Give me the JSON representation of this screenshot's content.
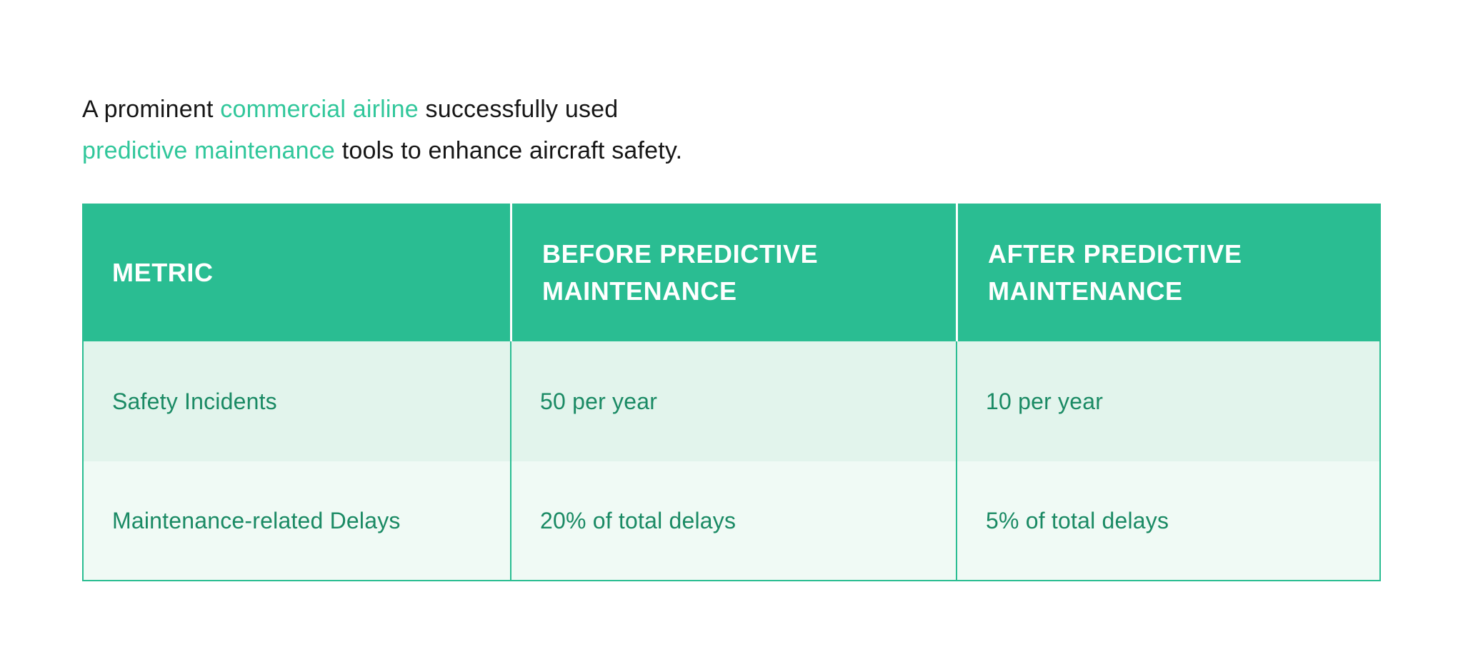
{
  "colors": {
    "accent_green": "#2abd92",
    "accent_text_green": "#31c79b",
    "cell_text_green": "#1a8a64",
    "row_odd_bg": "#e2f4ec",
    "row_even_bg": "#f0faf5",
    "header_text": "#ffffff",
    "body_text": "#161616",
    "page_bg": "#ffffff"
  },
  "intro": {
    "line1": {
      "part1": "A prominent ",
      "accent": "commercial airline",
      "part2": " successfully used"
    },
    "line2": {
      "accent": "predictive maintenance",
      "part2": " tools to enhance aircraft safety."
    }
  },
  "table": {
    "headers": [
      {
        "label": "METRIC"
      },
      {
        "label": "BEFORE PREDICTIVE MAINTENANCE"
      },
      {
        "label": "AFTER PREDICTIVE MAINTENANCE"
      }
    ],
    "rows": [
      {
        "cells": [
          "Safety Incidents",
          "50 per year",
          "10 per year"
        ]
      },
      {
        "cells": [
          "Maintenance-related Delays",
          "20% of total delays",
          "5% of total delays"
        ]
      }
    ]
  }
}
